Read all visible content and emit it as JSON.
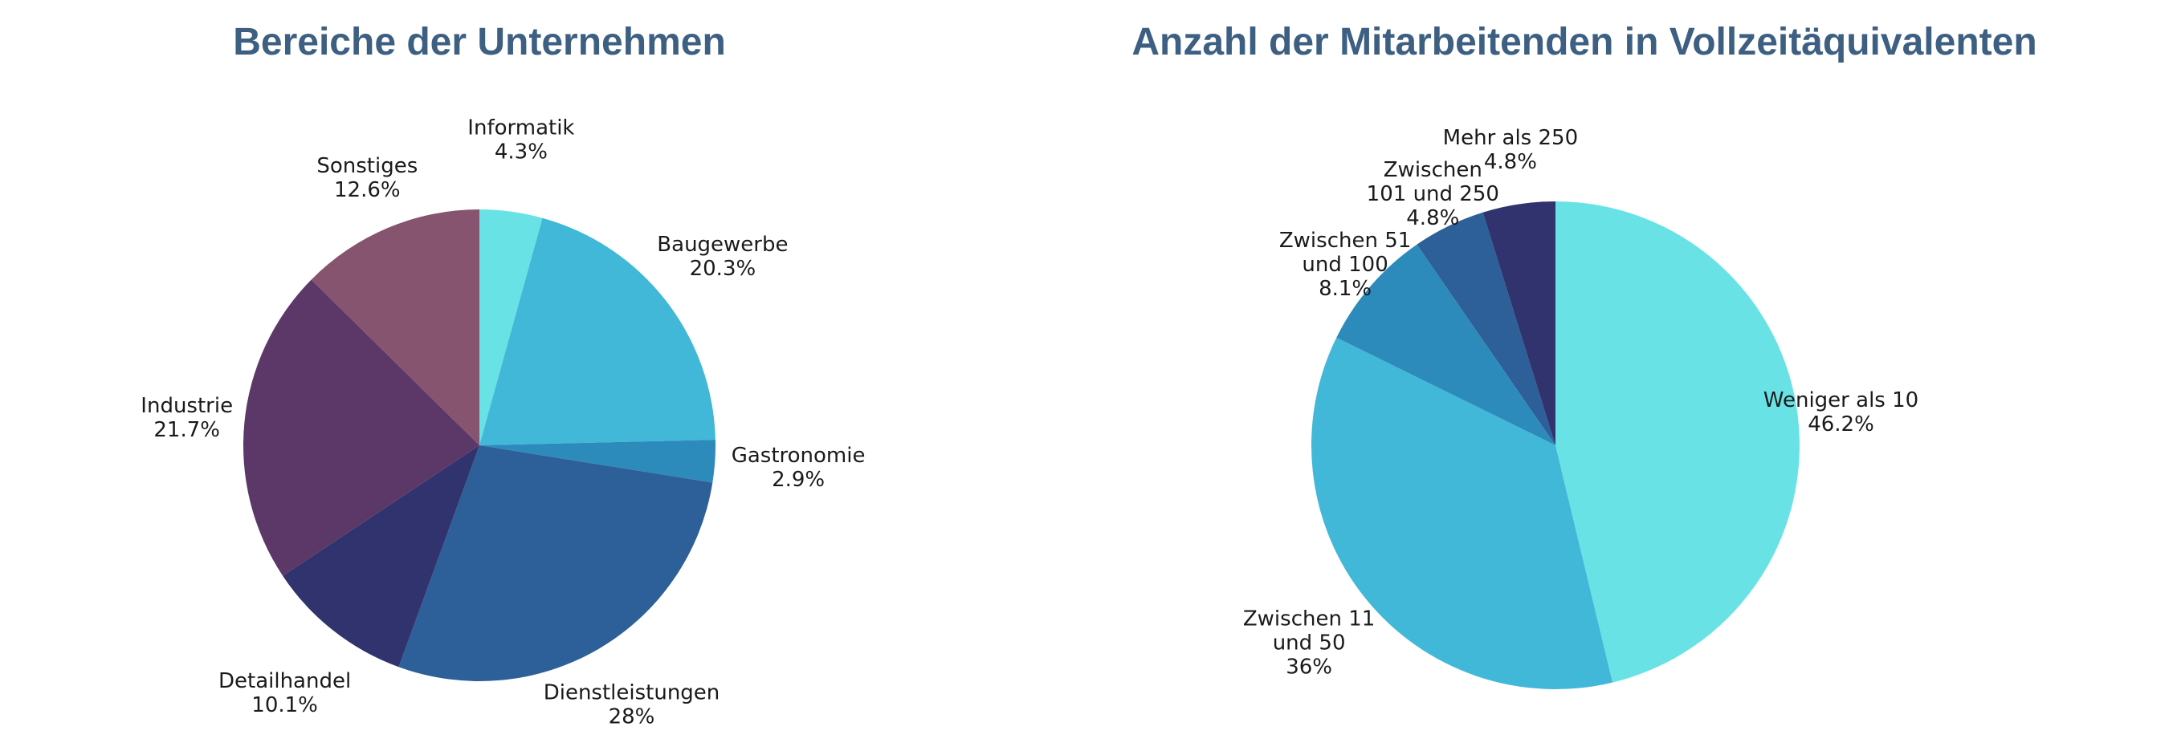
{
  "chart_data": [
    {
      "type": "pie",
      "title": "Bereiche der Unternehmen",
      "start_angle_deg": 0,
      "direction": "clockwise",
      "slices": [
        {
          "label": [
            "Informatik"
          ],
          "value": 4.3,
          "value_label": "4.3%",
          "color": "#69e2e6"
        },
        {
          "label": [
            "Baugewerbe"
          ],
          "value": 20.3,
          "value_label": "20.3%",
          "color": "#42b8d8"
        },
        {
          "label": [
            "Gastronomie"
          ],
          "value": 2.9,
          "value_label": "2.9%",
          "color": "#2d8bbb"
        },
        {
          "label": [
            "Dienstleistungen"
          ],
          "value": 28,
          "value_label": "28%",
          "color": "#2d5f98"
        },
        {
          "label": [
            "Detailhandel"
          ],
          "value": 10.1,
          "value_label": "10.1%",
          "color": "#30336d"
        },
        {
          "label": [
            "Industrie"
          ],
          "value": 21.7,
          "value_label": "21.7%",
          "color": "#5c3868"
        },
        {
          "label": [
            "Sonstiges"
          ],
          "value": 12.6,
          "value_label": "12.6%",
          "color": "#87546f"
        }
      ]
    },
    {
      "type": "pie",
      "title": "Anzahl der Mitarbeitenden in Vollzeitäquivalenten",
      "start_angle_deg": 0,
      "direction": "clockwise",
      "slices": [
        {
          "label": [
            "Weniger als 10"
          ],
          "value": 46.2,
          "value_label": "46.2%",
          "color": "#69e2e6"
        },
        {
          "label": [
            "Zwischen 11",
            "und 50"
          ],
          "value": 36,
          "value_label": "36%",
          "color": "#42b8d8"
        },
        {
          "label": [
            "Zwischen 51",
            "und 100"
          ],
          "value": 8.1,
          "value_label": "8.1%",
          "color": "#2d8bbb"
        },
        {
          "label": [
            "Zwischen",
            "101 und 250"
          ],
          "value": 4.8,
          "value_label": "4.8%",
          "color": "#2d5f98"
        },
        {
          "label": [
            "Mehr als 250"
          ],
          "value": 4.8,
          "value_label": "4.8%",
          "color": "#30336d"
        }
      ]
    }
  ]
}
